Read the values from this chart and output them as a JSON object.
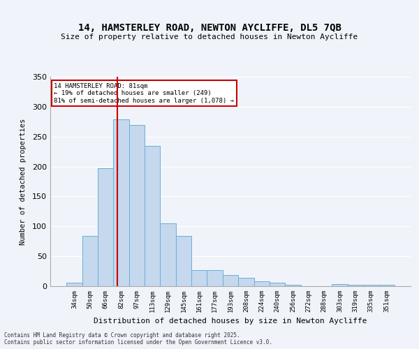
{
  "title_line1": "14, HAMSTERLEY ROAD, NEWTON AYCLIFFE, DL5 7QB",
  "title_line2": "Size of property relative to detached houses in Newton Aycliffe",
  "xlabel": "Distribution of detached houses by size in Newton Aycliffe",
  "ylabel": "Number of detached properties",
  "categories": [
    "34sqm",
    "50sqm",
    "66sqm",
    "82sqm",
    "97sqm",
    "113sqm",
    "129sqm",
    "145sqm",
    "161sqm",
    "177sqm",
    "193sqm",
    "208sqm",
    "224sqm",
    "240sqm",
    "256sqm",
    "272sqm",
    "288sqm",
    "303sqm",
    "319sqm",
    "335sqm",
    "351sqm"
  ],
  "values": [
    6,
    84,
    197,
    279,
    270,
    235,
    105,
    84,
    27,
    27,
    19,
    14,
    8,
    6,
    2,
    0,
    0,
    3,
    2,
    2,
    2
  ],
  "bar_color": "#c5d8ed",
  "bar_edge_color": "#6aaed6",
  "bar_width": 1.0,
  "vline_x": 2.75,
  "vline_color": "#cc0000",
  "annotation_text": "14 HAMSTERLEY ROAD: 81sqm\n← 19% of detached houses are smaller (249)\n81% of semi-detached houses are larger (1,078) →",
  "annotation_box_color": "#ffffff",
  "annotation_box_edge": "#cc0000",
  "ylim": [
    0,
    350
  ],
  "yticks": [
    0,
    50,
    100,
    150,
    200,
    250,
    300,
    350
  ],
  "footer": "Contains HM Land Registry data © Crown copyright and database right 2025.\nContains public sector information licensed under the Open Government Licence v3.0.",
  "bg_color": "#f0f4fa",
  "plot_bg_color": "#f0f4fa",
  "grid_color": "#ffffff"
}
